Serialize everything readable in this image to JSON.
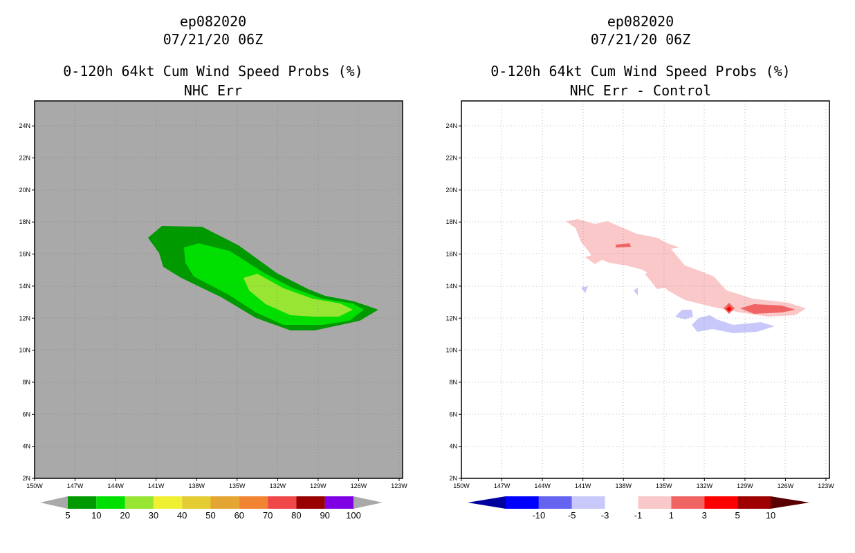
{
  "left_panel": {
    "title_line1": "ep082020",
    "title_line2": "07/21/20 06Z",
    "title_line3": "0-120h 64kt Cum Wind Speed Probs (%)",
    "title_line4": "NHC Err",
    "background_color": "#a9a9a9",
    "colorbar_labels": [
      "5",
      "10",
      "20",
      "30",
      "40",
      "50",
      "60",
      "70",
      "80",
      "90",
      "100"
    ],
    "colorbar_colors": [
      "#009900",
      "#00e000",
      "#99e533",
      "#f0f033",
      "#e5cc33",
      "#e5a533",
      "#f08433",
      "#f04848",
      "#990000",
      "#7f00e5"
    ]
  },
  "right_panel": {
    "title_line1": "ep082020",
    "title_line2": "07/21/20 06Z",
    "title_line3": "0-120h 64kt Cum Wind Speed Probs (%)",
    "title_line4": "NHC Err - Control",
    "background_color": "#ffffff",
    "colorbar_labels": [
      "-10",
      "-5",
      "-3",
      "-1",
      "1",
      "3",
      "5",
      "10"
    ],
    "colorbar_colors": [
      "#00009f",
      "#0000ff",
      "#6464f0",
      "#c8c8fa",
      "#ffffff",
      "#fac8c8",
      "#f06464",
      "#ff0000",
      "#9f0000",
      "#5a0000"
    ]
  },
  "axes": {
    "lon_labels": [
      "150W",
      "147W",
      "144W",
      "141W",
      "138W",
      "135W",
      "132W",
      "129W",
      "126W",
      "123W"
    ],
    "lat_labels": [
      "2N",
      "4N",
      "6N",
      "8N",
      "10N",
      "12N",
      "14N",
      "16N",
      "18N",
      "20N",
      "22N",
      "24N"
    ]
  }
}
